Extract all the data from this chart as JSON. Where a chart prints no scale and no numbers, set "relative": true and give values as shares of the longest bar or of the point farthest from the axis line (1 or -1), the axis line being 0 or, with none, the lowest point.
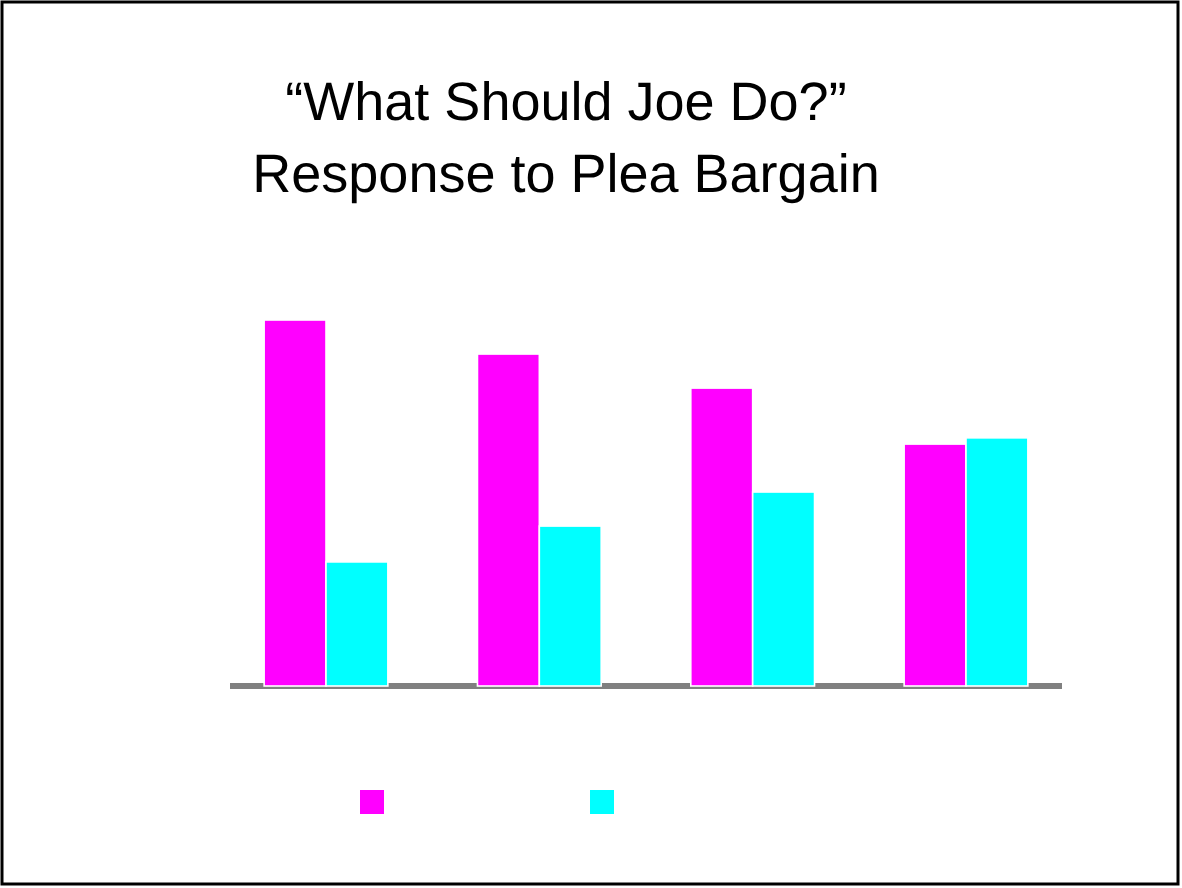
{
  "chart_data": {
    "type": "bar",
    "title": "“What Should Joe Do?”\nResponse to Plea Bargain",
    "relative": true,
    "categories": [
      null,
      null,
      null,
      null
    ],
    "series": [
      {
        "color": "#ff00ff",
        "values": [
          1,
          0.907,
          0.814,
          0.661
        ]
      },
      {
        "color": "#00ffff",
        "values": [
          0.339,
          0.437,
          0.53,
          0.678
        ]
      }
    ]
  }
}
